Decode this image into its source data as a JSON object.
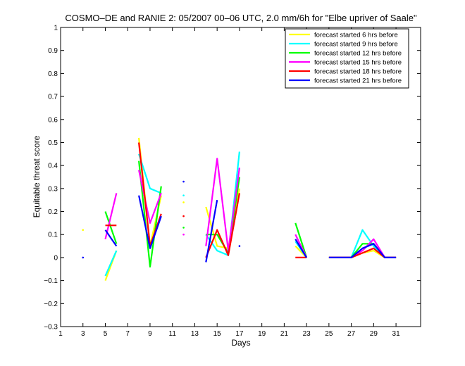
{
  "chart_data": {
    "type": "line",
    "title": "COSMO–DE and RANIE 2: 05/2007 00–06 UTC, 2.0 mm/6h for \"Elbe upriver of Saale\"",
    "xlabel": "Days",
    "ylabel": "Equitable threat score",
    "xlim": [
      1,
      31
    ],
    "xlim_axis_end": 33.2,
    "ylim": [
      -0.3,
      1
    ],
    "xticks": [
      "1",
      "3",
      "5",
      "7",
      "9",
      "11",
      "13",
      "15",
      "17",
      "19",
      "21",
      "23",
      "25",
      "27",
      "29",
      "31"
    ],
    "yticks": [
      "−0.3",
      "−0.2",
      "−0.1",
      "0",
      "0.1",
      "0.2",
      "0.3",
      "0.4",
      "0.5",
      "0.6",
      "0.7",
      "0.8",
      "0.9",
      "1"
    ],
    "grid": false,
    "legend_position": "top-right",
    "series": [
      {
        "name": "forecast started 6 hrs before",
        "color": "#ffff00",
        "segments": [
          [
            [
              3,
              0.12
            ]
          ],
          [
            [
              5,
              -0.1
            ],
            [
              6,
              0.03
            ]
          ],
          [
            [
              8,
              0.52
            ],
            [
              9,
              0.05
            ],
            [
              10,
              0.27
            ]
          ],
          [
            [
              12,
              0.24
            ]
          ],
          [
            [
              14,
              0.22
            ],
            [
              15,
              0.05
            ],
            [
              16,
              0.04
            ],
            [
              17,
              0.3
            ]
          ],
          [
            [
              22,
              0.05
            ],
            [
              23,
              0
            ]
          ],
          [
            [
              25,
              0
            ],
            [
              26,
              0
            ],
            [
              27,
              0
            ],
            [
              28,
              0.02
            ],
            [
              29,
              0.03
            ],
            [
              30,
              0
            ],
            [
              31,
              0
            ]
          ]
        ]
      },
      {
        "name": "forecast started 9 hrs before",
        "color": "#00ffff",
        "segments": [
          [
            [
              5,
              -0.08
            ],
            [
              6,
              0.03
            ]
          ],
          [
            [
              8,
              0.45
            ],
            [
              9,
              0.3
            ],
            [
              10,
              0.28
            ]
          ],
          [
            [
              12,
              0.27
            ]
          ],
          [
            [
              14,
              0.1
            ],
            [
              15,
              0.03
            ],
            [
              16,
              0.01
            ],
            [
              17,
              0.46
            ]
          ],
          [
            [
              22,
              0.07
            ],
            [
              23,
              0
            ]
          ],
          [
            [
              25,
              0
            ],
            [
              26,
              0
            ],
            [
              27,
              0
            ],
            [
              28,
              0.12
            ],
            [
              29,
              0.05
            ],
            [
              30,
              0
            ],
            [
              31,
              0
            ]
          ]
        ]
      },
      {
        "name": "forecast started 12 hrs before",
        "color": "#00ff00",
        "segments": [
          [
            [
              5,
              0.2
            ],
            [
              6,
              0.06
            ]
          ],
          [
            [
              8,
              0.42
            ],
            [
              9,
              -0.04
            ],
            [
              10,
              0.31
            ]
          ],
          [
            [
              12,
              0.13
            ]
          ],
          [
            [
              14,
              0.1
            ],
            [
              15,
              0.1
            ],
            [
              16,
              0.02
            ],
            [
              17,
              0.35
            ]
          ],
          [
            [
              22,
              0.15
            ],
            [
              23,
              0
            ]
          ],
          [
            [
              25,
              0
            ],
            [
              26,
              0
            ],
            [
              27,
              0
            ],
            [
              28,
              0.06
            ],
            [
              29,
              0.06
            ],
            [
              30,
              0
            ],
            [
              31,
              0
            ]
          ]
        ]
      },
      {
        "name": "forecast started 15 hrs before",
        "color": "#ff00ff",
        "segments": [
          [
            [
              5,
              0.08
            ],
            [
              6,
              0.28
            ]
          ],
          [
            [
              8,
              0.38
            ],
            [
              9,
              0.15
            ],
            [
              10,
              0.28
            ]
          ],
          [
            [
              12,
              0.1
            ]
          ],
          [
            [
              14,
              0.05
            ],
            [
              15,
              0.43
            ],
            [
              16,
              0.03
            ],
            [
              17,
              0.39
            ]
          ],
          [
            [
              22,
              0.1
            ],
            [
              23,
              0
            ]
          ],
          [
            [
              25,
              0
            ],
            [
              26,
              0
            ],
            [
              27,
              0
            ],
            [
              28,
              0.03
            ],
            [
              29,
              0.08
            ],
            [
              30,
              0
            ],
            [
              31,
              0
            ]
          ]
        ]
      },
      {
        "name": "forecast started 18 hrs before",
        "color": "#ff0000",
        "segments": [
          [
            [
              5,
              0.14
            ],
            [
              6,
              0.14
            ]
          ],
          [
            [
              8,
              0.5
            ],
            [
              9,
              0.05
            ],
            [
              10,
              0.19
            ]
          ],
          [
            [
              12,
              0.18
            ]
          ],
          [
            [
              14,
              0
            ],
            [
              15,
              0.12
            ],
            [
              16,
              0.01
            ],
            [
              17,
              0.28
            ]
          ],
          [
            [
              22,
              0
            ],
            [
              23,
              0
            ]
          ],
          [
            [
              25,
              0
            ],
            [
              26,
              0
            ],
            [
              27,
              0
            ],
            [
              28,
              0.02
            ],
            [
              29,
              0.04
            ],
            [
              30,
              0
            ],
            [
              31,
              0
            ]
          ]
        ]
      },
      {
        "name": "forecast started 21 hrs before",
        "color": "#0000ff",
        "segments": [
          [
            [
              3,
              0
            ]
          ],
          [
            [
              5,
              0.12
            ],
            [
              6,
              0.05
            ]
          ],
          [
            [
              8,
              0.27
            ],
            [
              9,
              0.04
            ],
            [
              10,
              0.18
            ]
          ],
          [
            [
              12,
              0.33
            ]
          ],
          [
            [
              14,
              -0.02
            ],
            [
              15,
              0.25
            ]
          ],
          [
            [
              17,
              0.05
            ]
          ],
          [
            [
              22,
              0.08
            ],
            [
              23,
              0
            ]
          ],
          [
            [
              25,
              0
            ],
            [
              26,
              0
            ],
            [
              27,
              0
            ],
            [
              28,
              0.04
            ],
            [
              29,
              0.06
            ],
            [
              30,
              0
            ],
            [
              31,
              0
            ]
          ]
        ]
      }
    ]
  }
}
